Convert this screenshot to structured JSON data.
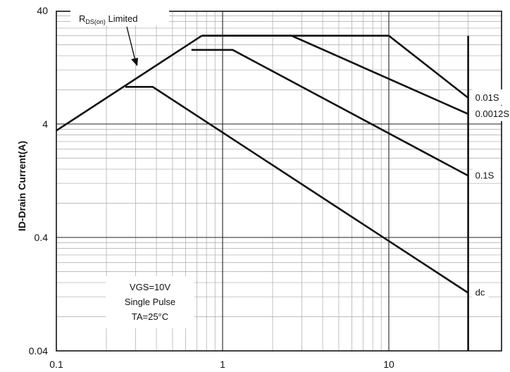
{
  "chart_data": {
    "type": "line",
    "title": "",
    "xlabel": "",
    "ylabel": "ID-Drain Current(A)",
    "x_scale": "log",
    "y_scale": "log",
    "xlim": [
      0.1,
      40
    ],
    "ylim": [
      0.04,
      40
    ],
    "x_ticks": [
      0.1,
      1,
      10
    ],
    "x_tick_labels": [
      "0.1",
      "1",
      "10"
    ],
    "y_ticks": [
      0.04,
      0.4,
      4,
      40
    ],
    "y_tick_labels": [
      "0.04",
      "0.4",
      "4",
      "40"
    ],
    "grid": true,
    "legend": "none",
    "rds_limit": {
      "label_main": "R",
      "label_sub": "DS(on)",
      "label_tail": " Limited",
      "points": [
        [
          0.1,
          3.5
        ],
        [
          0.75,
          24
        ]
      ]
    },
    "current_limit": 24,
    "voltage_limit": 30,
    "series": [
      {
        "name": "0.0012S",
        "points": [
          [
            0.75,
            24
          ],
          [
            2.6,
            24
          ],
          [
            30,
            4.9
          ]
        ]
      },
      {
        "name": "0.01S",
        "points": [
          [
            0.75,
            24
          ],
          [
            10,
            24
          ],
          [
            30,
            6.8
          ]
        ]
      },
      {
        "name": "0.1S",
        "points": [
          [
            0.65,
            18
          ],
          [
            1.15,
            18
          ],
          [
            30,
            1.4
          ]
        ]
      },
      {
        "name": "dc",
        "points": [
          [
            0.26,
            8.5
          ],
          [
            0.38,
            8.5
          ],
          [
            30,
            0.13
          ]
        ]
      }
    ],
    "annotations": {
      "cond_lines": [
        "VGS=10V",
        "Single Pulse",
        "TA=25°C"
      ]
    }
  }
}
